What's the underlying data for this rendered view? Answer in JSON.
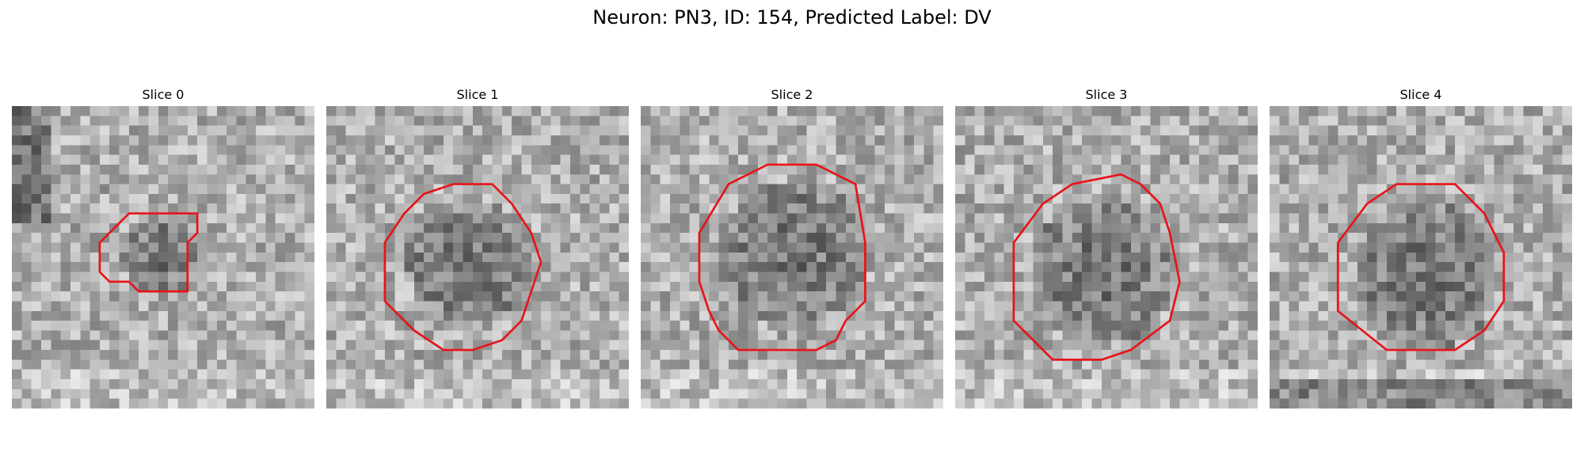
{
  "figure": {
    "title": "Neuron: PN3, ID: 154, Predicted Label: DV",
    "outline_color": "#e8141a"
  },
  "panels": [
    {
      "label": "Slice 0"
    },
    {
      "label": "Slice 1"
    },
    {
      "label": "Slice 2"
    },
    {
      "label": "Slice 3"
    },
    {
      "label": "Slice 4"
    }
  ]
}
